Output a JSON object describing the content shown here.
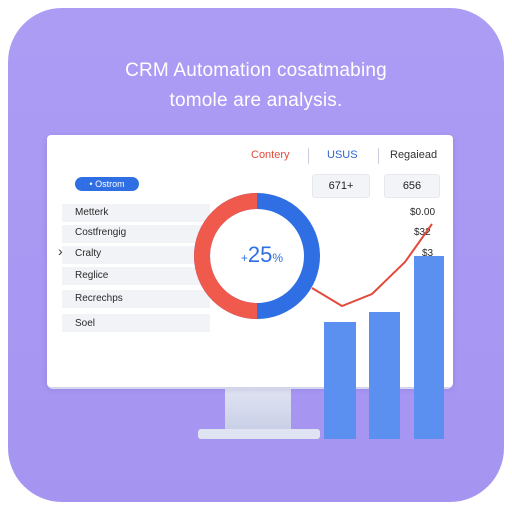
{
  "headline": {
    "line1": "CRM Automation cosatmabing",
    "line2": "tomole are analysis."
  },
  "header": {
    "col1": "Contery",
    "col2": "USUS",
    "col3": "Regaiead"
  },
  "filter_pill": "• Ostrom",
  "values": [
    "671+",
    "656"
  ],
  "rows": [
    {
      "label": "Metterk",
      "value": "$0.00"
    },
    {
      "label": "Costfrengig",
      "value": "$32"
    },
    {
      "label": "Cralty",
      "value": "$3"
    },
    {
      "label": "Reglice",
      "value": ""
    },
    {
      "label": "Recrechps",
      "value": ""
    },
    {
      "label": "Soel",
      "value": ""
    }
  ],
  "donut": {
    "prefix": "+",
    "value": "25",
    "unit": "%",
    "colors": {
      "red": "#f05a4c",
      "blue": "#2f6fe3"
    }
  },
  "colors": {
    "accent": "#2f6fe3",
    "trend_line": "#e24b3b",
    "bars": "#5b8ff0",
    "background": "#a898f3"
  }
}
